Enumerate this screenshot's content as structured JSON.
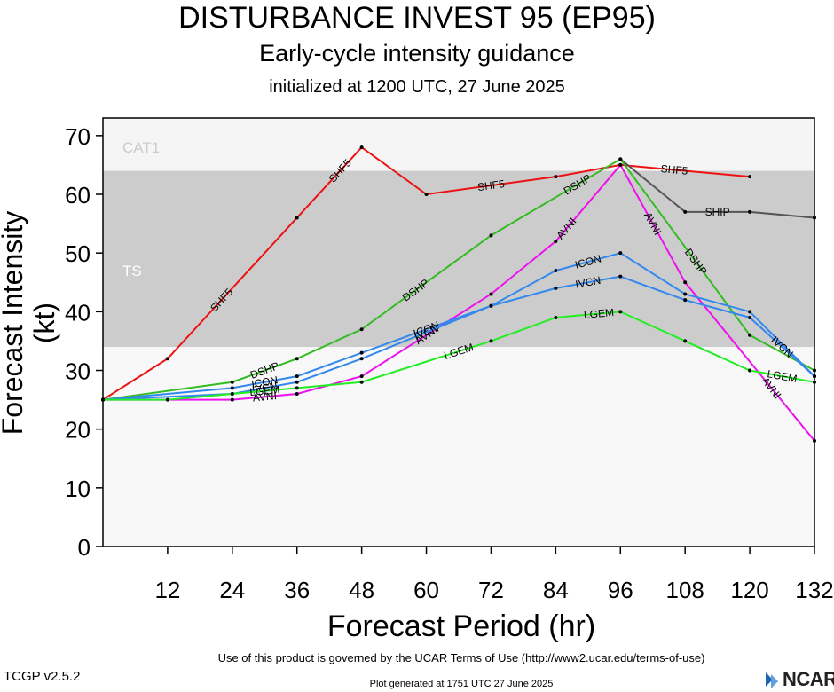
{
  "title": "DISTURBANCE INVEST 95 (EP95)",
  "subtitle": "Early-cycle intensity guidance",
  "initialized": "initialized at 1200 UTC, 27 June 2025",
  "footer": {
    "terms": "Use of this product is governed by the UCAR Terms of Use (http://www2.ucar.edu/terms-of-use)",
    "version": "TCGP v2.5.2",
    "generated": "Plot generated at 1751 UTC   27 June 2025",
    "logo_text": "NCAR"
  },
  "chart_data": {
    "type": "line",
    "title": "DISTURBANCE INVEST 95 (EP95)",
    "xlabel": "Forecast Period (hr)",
    "ylabel": "Forecast Intensity (kt)",
    "xlim": [
      0,
      132
    ],
    "ylim": [
      0,
      70
    ],
    "xticks": [
      12,
      24,
      36,
      48,
      60,
      72,
      84,
      96,
      108,
      120,
      132
    ],
    "yticks": [
      0,
      10,
      20,
      30,
      40,
      50,
      60,
      70
    ],
    "bands": [
      {
        "label": "TS",
        "from": 34,
        "to": 64,
        "color": "#cccccc"
      },
      {
        "label": "CAT1",
        "from": 64,
        "to": 73,
        "color": "#f5f5f5"
      }
    ],
    "series": [
      {
        "name": "SHF5",
        "color": "#ee1111",
        "x": [
          0,
          12,
          36,
          48,
          60,
          84,
          96,
          120
        ],
        "values": [
          25,
          32,
          56,
          68,
          60,
          63,
          65,
          63
        ],
        "labels_x": [
          22,
          44,
          72,
          106
        ]
      },
      {
        "name": "SHIP",
        "color": "#555555",
        "x": [
          96,
          108,
          120,
          132
        ],
        "values": [
          66,
          57,
          57,
          56
        ],
        "labels_x": [
          58,
          90,
          114
        ]
      },
      {
        "name": "DSHP",
        "color": "#33bb22",
        "x": [
          0,
          24,
          36,
          48,
          72,
          96,
          120,
          132
        ],
        "values": [
          25,
          28,
          32,
          37,
          53,
          66,
          36,
          30
        ],
        "labels_x": [
          30,
          58,
          88,
          110
        ]
      },
      {
        "name": "AVNI",
        "color": "#ee11ee",
        "x": [
          0,
          24,
          36,
          48,
          72,
          84,
          96,
          108,
          132
        ],
        "values": [
          25,
          25,
          26,
          29,
          43,
          52,
          65,
          45,
          18
        ],
        "labels_x": [
          30,
          60,
          86,
          102,
          124
        ]
      },
      {
        "name": "ICON",
        "color": "#3388ee",
        "x": [
          0,
          24,
          36,
          48,
          72,
          84,
          96,
          108,
          120,
          132
        ],
        "values": [
          25,
          27,
          29,
          33,
          41,
          47,
          50,
          43,
          40,
          29
        ],
        "labels_x": [
          30,
          60,
          90
        ]
      },
      {
        "name": "IVCN",
        "color": "#3388ee",
        "x": [
          0,
          24,
          36,
          48,
          72,
          84,
          96,
          108,
          120,
          132
        ],
        "values": [
          25,
          26,
          28,
          32,
          41,
          44,
          46,
          42,
          39,
          29
        ],
        "labels_x": [
          30,
          60,
          90,
          126
        ]
      },
      {
        "name": "LGEM",
        "color": "#22ee22",
        "x": [
          0,
          12,
          24,
          36,
          48,
          72,
          84,
          96,
          108,
          120,
          132
        ],
        "values": [
          25,
          25,
          26,
          27,
          28,
          35,
          39,
          40,
          35,
          30,
          28
        ],
        "labels_x": [
          30,
          66,
          92,
          126
        ]
      }
    ]
  }
}
